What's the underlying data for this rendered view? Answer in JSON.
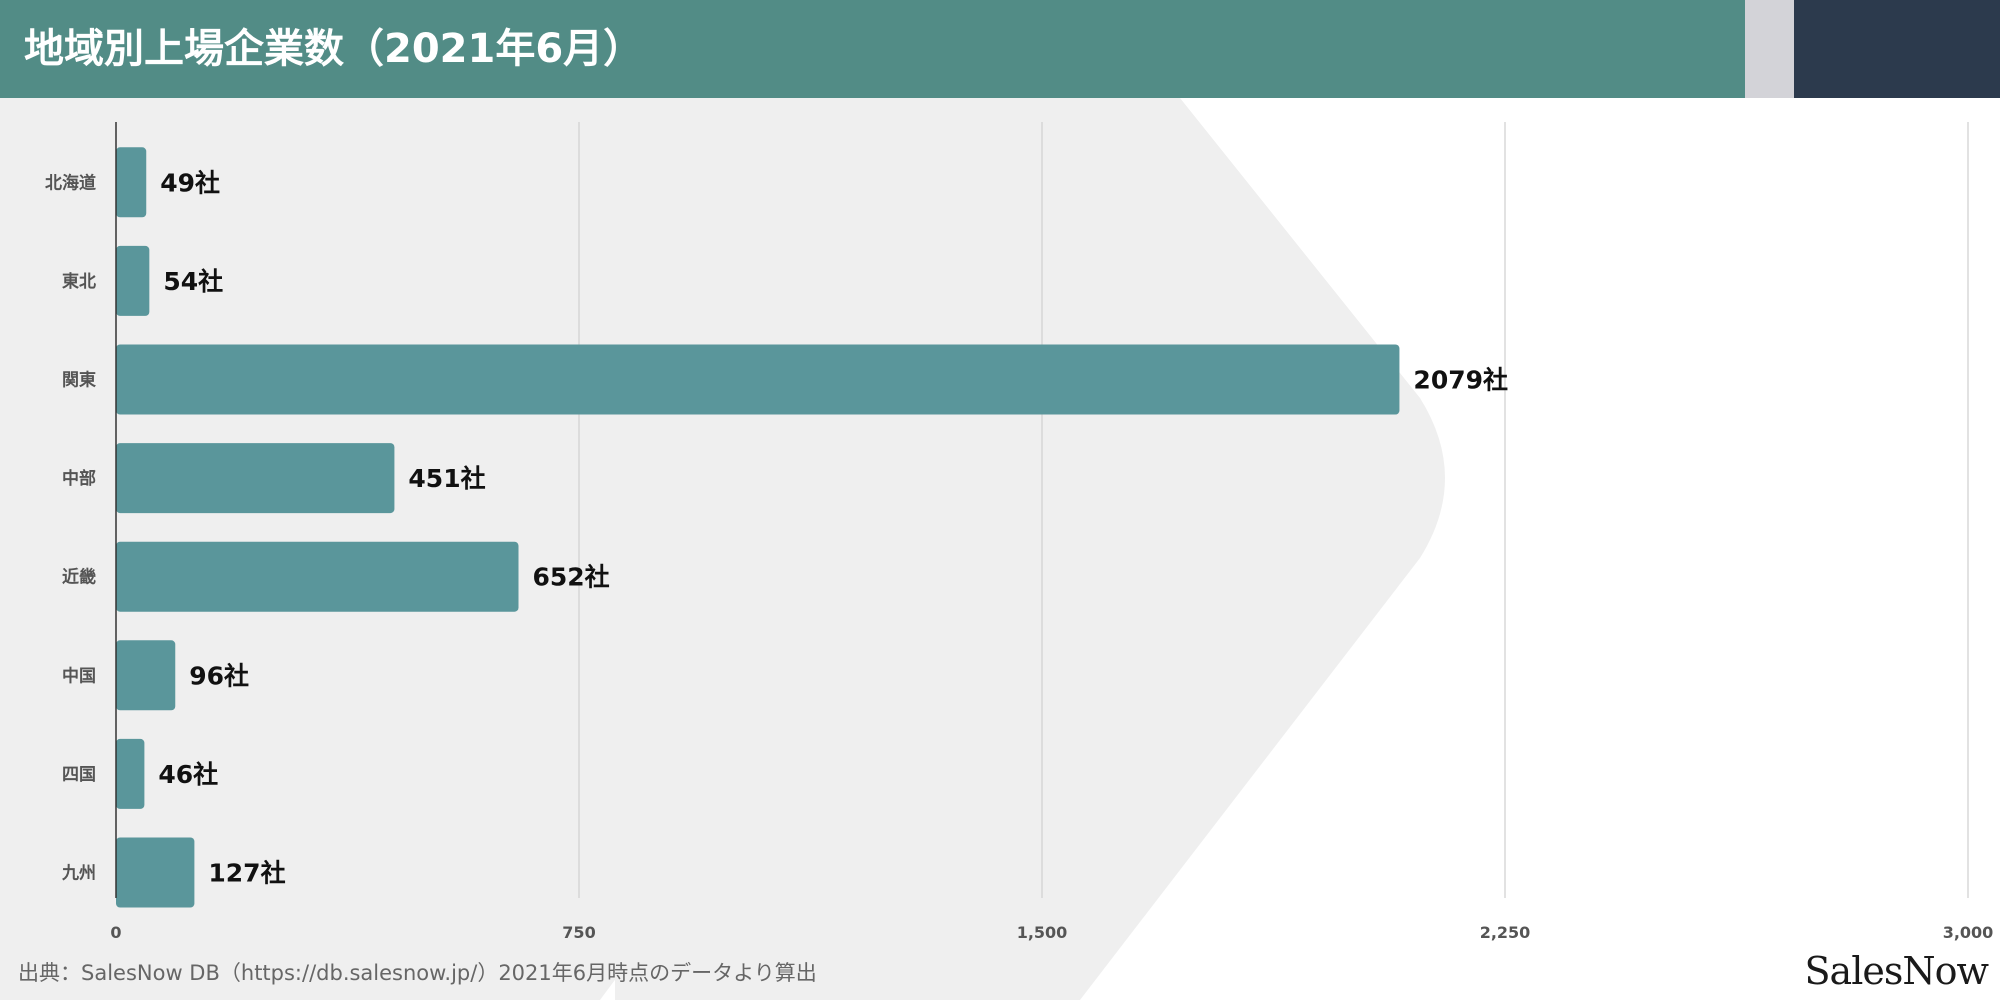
{
  "header": {
    "title": "地域別上場企業数（2021年6月）",
    "accent_color": "#528c86",
    "gap_color": "#d3d3d8",
    "dark_color": "#2c3a4d"
  },
  "chart_data": {
    "type": "bar",
    "orientation": "horizontal",
    "categories": [
      "北海道",
      "東北",
      "関東",
      "中部",
      "近畿",
      "中国",
      "四国",
      "九州"
    ],
    "values": [
      49,
      54,
      2079,
      451,
      652,
      96,
      46,
      127
    ],
    "value_labels": [
      "49社",
      "54社",
      "2079社",
      "451社",
      "652社",
      "96社",
      "46社",
      "127社"
    ],
    "title": "",
    "xlabel": "",
    "ylabel": "",
    "xlim": [
      0,
      3000
    ],
    "x_ticks": [
      0,
      750,
      1500,
      2250,
      3000
    ],
    "x_tick_labels": [
      "0",
      "750",
      "1,500",
      "2,250",
      "3,000"
    ],
    "grid": true,
    "bar_color": "#5a969b"
  },
  "footer": {
    "source": "出典：SalesNow DB（https://db.salesnow.jp/）2021年6月時点のデータより算出",
    "logo": "SalesNow"
  }
}
